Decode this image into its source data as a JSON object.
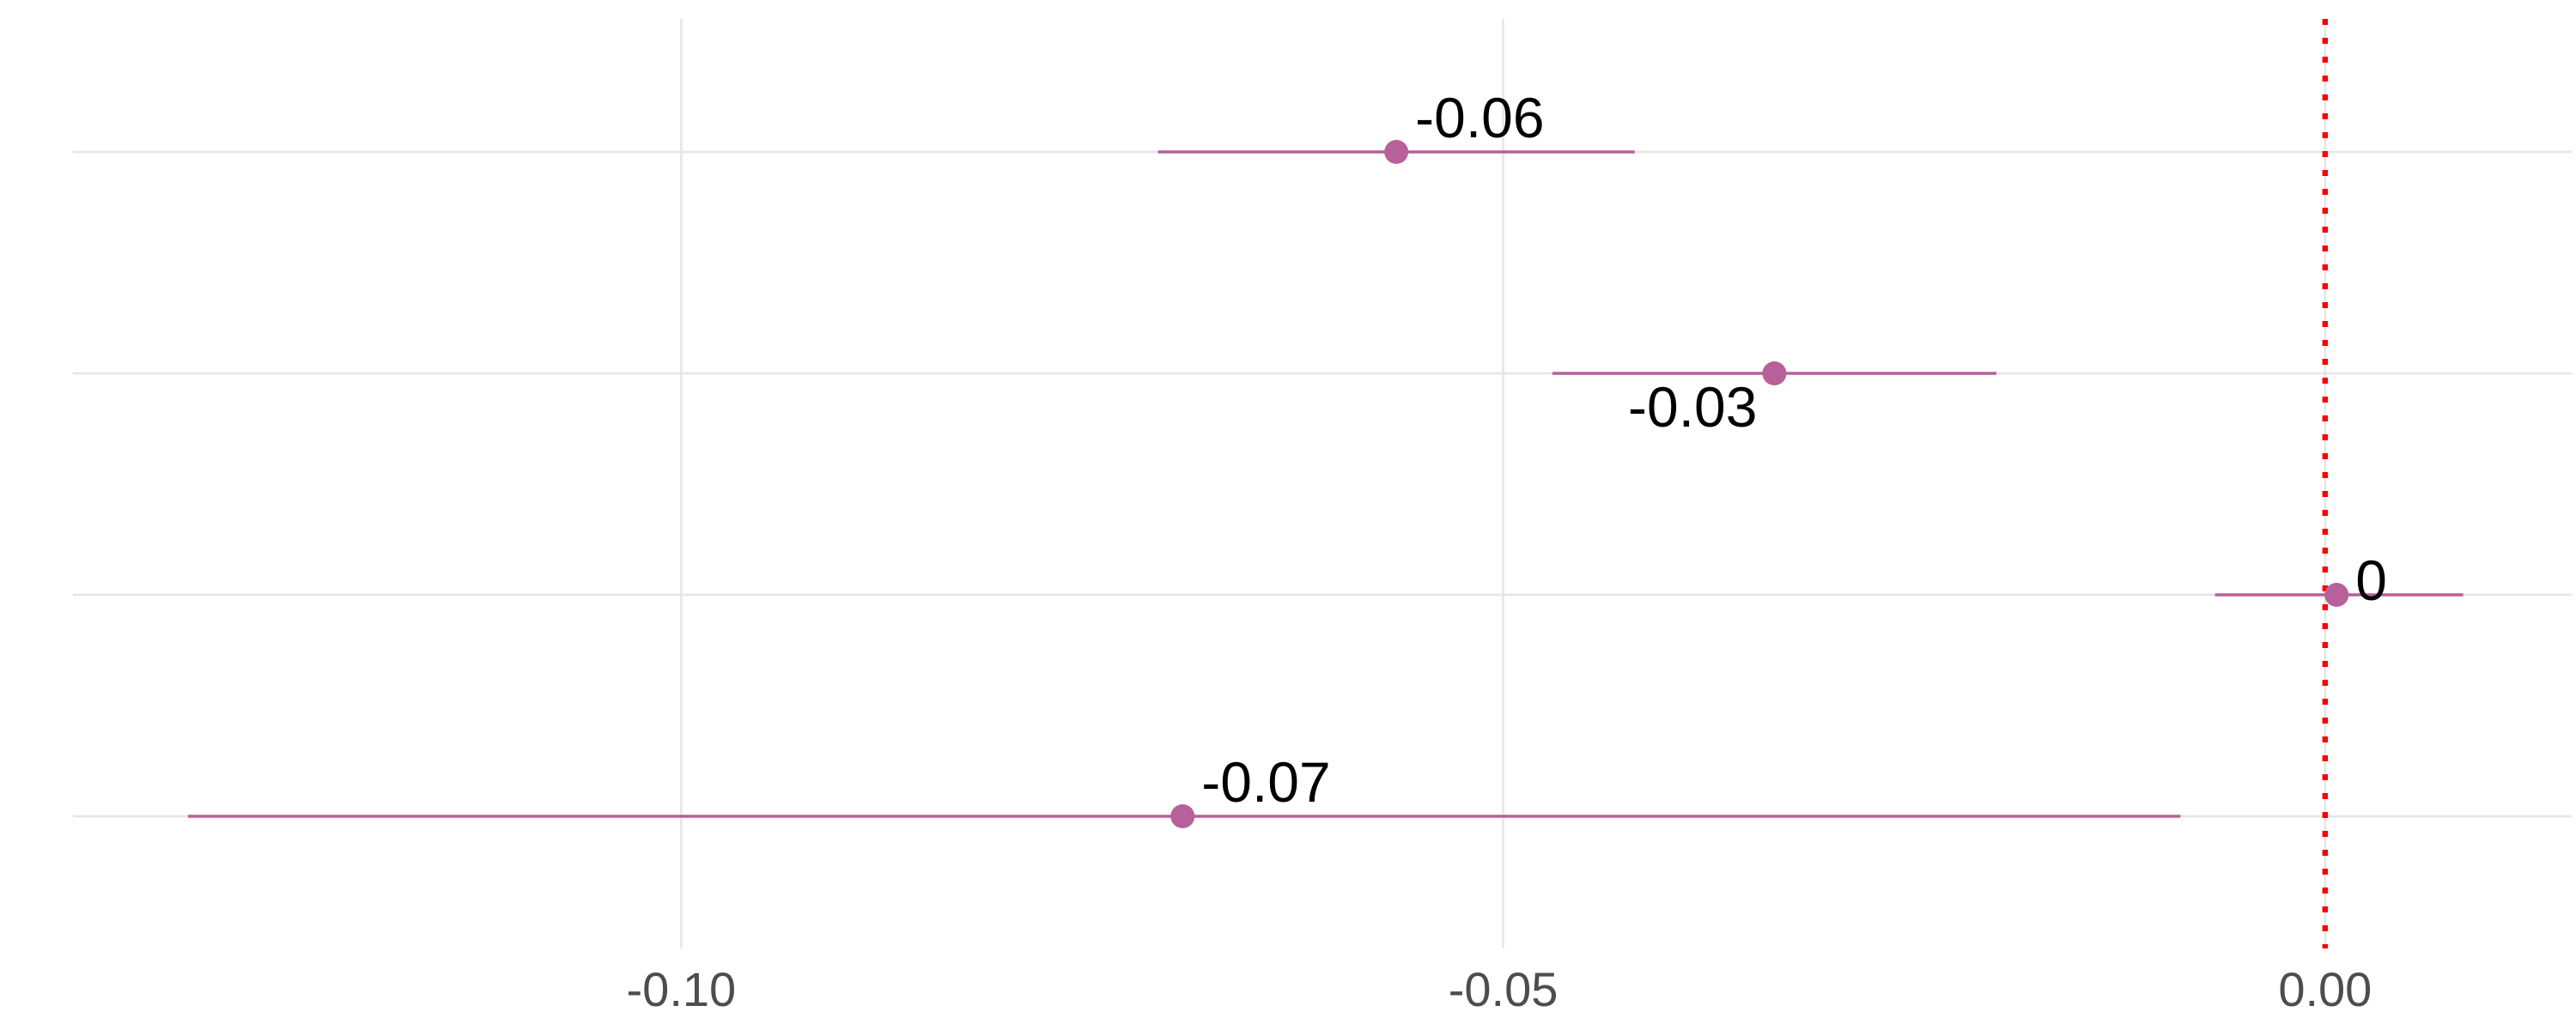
{
  "chart_data": {
    "type": "forest",
    "xlim": [
      -0.137,
      0.015
    ],
    "x_ticks": [
      {
        "value": -0.1,
        "label": "-0.10"
      },
      {
        "value": -0.05,
        "label": "-0.05"
      },
      {
        "value": 0.0,
        "label": "0.00"
      }
    ],
    "reference_line": {
      "value": 0.0,
      "color": "#ff0000",
      "style": "dotted"
    },
    "point_color": "#b8609a",
    "grid": true,
    "rows": [
      {
        "estimate": -0.0565,
        "lower": -0.071,
        "upper": -0.042,
        "label": "-0.06",
        "label_position": "above-right"
      },
      {
        "estimate": -0.0335,
        "lower": -0.047,
        "upper": -0.02,
        "label": "-0.03",
        "label_position": "below-left"
      },
      {
        "estimate": 0.0007,
        "lower": -0.0067,
        "upper": 0.0084,
        "label": "0",
        "label_position": "right"
      },
      {
        "estimate": -0.0695,
        "lower": -0.13,
        "upper": -0.0088,
        "label": "-0.07",
        "label_position": "above-right"
      }
    ]
  }
}
